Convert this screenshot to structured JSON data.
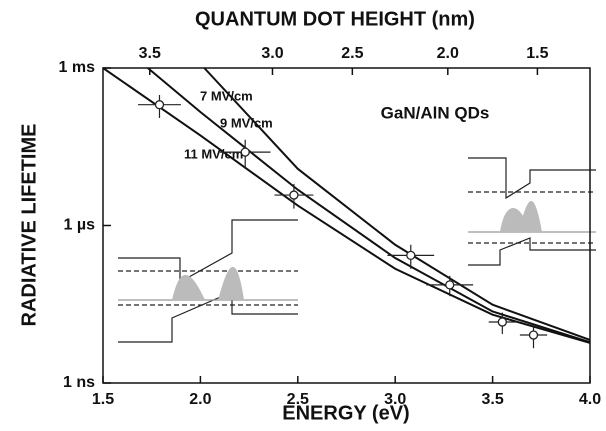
{
  "chart_data": {
    "type": "line",
    "title": "QUANTUM DOT HEIGHT (nm)",
    "x_label": "ENERGY (eV)",
    "y_label": "RADIATIVE LIFETIME",
    "annotation": "GaN/AlN QDs",
    "xlim": [
      1.5,
      4.0
    ],
    "xticks": [
      1.5,
      {
        "value": 2.0,
        "label": "2.0"
      },
      2.5,
      {
        "value": 3.0,
        "label": "3.0"
      },
      3.5,
      {
        "value": 4.0,
        "label": "4.0"
      }
    ],
    "ylim": [
      1e-09,
      0.001
    ],
    "y_scale": "log",
    "yticks": [
      {
        "value": 1e-09,
        "label": "1 ns"
      },
      {
        "value": 1e-06,
        "label": "1 µs"
      },
      {
        "value": 0.001,
        "label": "1 ms"
      }
    ],
    "top_axis": {
      "ticks": [
        3.5,
        {
          "value": 3.0,
          "label": "3.0"
        },
        2.5,
        {
          "value": 2.0,
          "label": "2.0"
        },
        1.5
      ],
      "tick_energy": [
        1.74,
        2.37,
        2.78,
        3.27,
        3.73
      ]
    },
    "series": [
      {
        "name": "7 MV/cm",
        "color": "#111111",
        "x": [
          2.02,
          2.5,
          3.0,
          3.5,
          4.0
        ],
        "values": [
          0.001,
          1.2e-05,
          4.3e-07,
          3.1e-08,
          6.6e-09
        ]
      },
      {
        "name": "9 MV/cm",
        "color": "#111111",
        "x": [
          1.73,
          2.0,
          2.5,
          3.0,
          3.5,
          4.0
        ],
        "values": [
          0.001,
          0.000145,
          4.8e-06,
          2.4e-07,
          2.3e-08,
          6e-09
        ]
      },
      {
        "name": "11 MV/cm",
        "color": "#111111",
        "x": [
          1.5,
          2.0,
          2.5,
          3.0,
          3.5,
          4.0
        ],
        "values": [
          0.001,
          5.2e-05,
          2.4e-06,
          1.5e-07,
          2e-08,
          5.8e-09
        ]
      }
    ],
    "points": {
      "x": [
        1.79,
        2.23,
        2.48,
        3.08,
        3.28,
        3.55,
        3.71
      ],
      "values": [
        0.0002,
        2.5e-05,
        3.8e-06,
        2.7e-07,
        7.4e-08,
        1.45e-08,
        8.2e-09
      ],
      "xerr": [
        0.11,
        0.13,
        0.1,
        0.12,
        0.12,
        0.07,
        0.07
      ],
      "ylow": [
        0.000112,
        1.2e-05,
        2.1e-06,
        1.5e-07,
        4.5e-08,
        8.6e-09,
        4.6e-09
      ],
      "yhigh": [
        0.000306,
        4.3e-05,
        6.2e-06,
        4.3e-07,
        1.1e-07,
        2.2e-08,
        1.27e-08
      ]
    }
  }
}
